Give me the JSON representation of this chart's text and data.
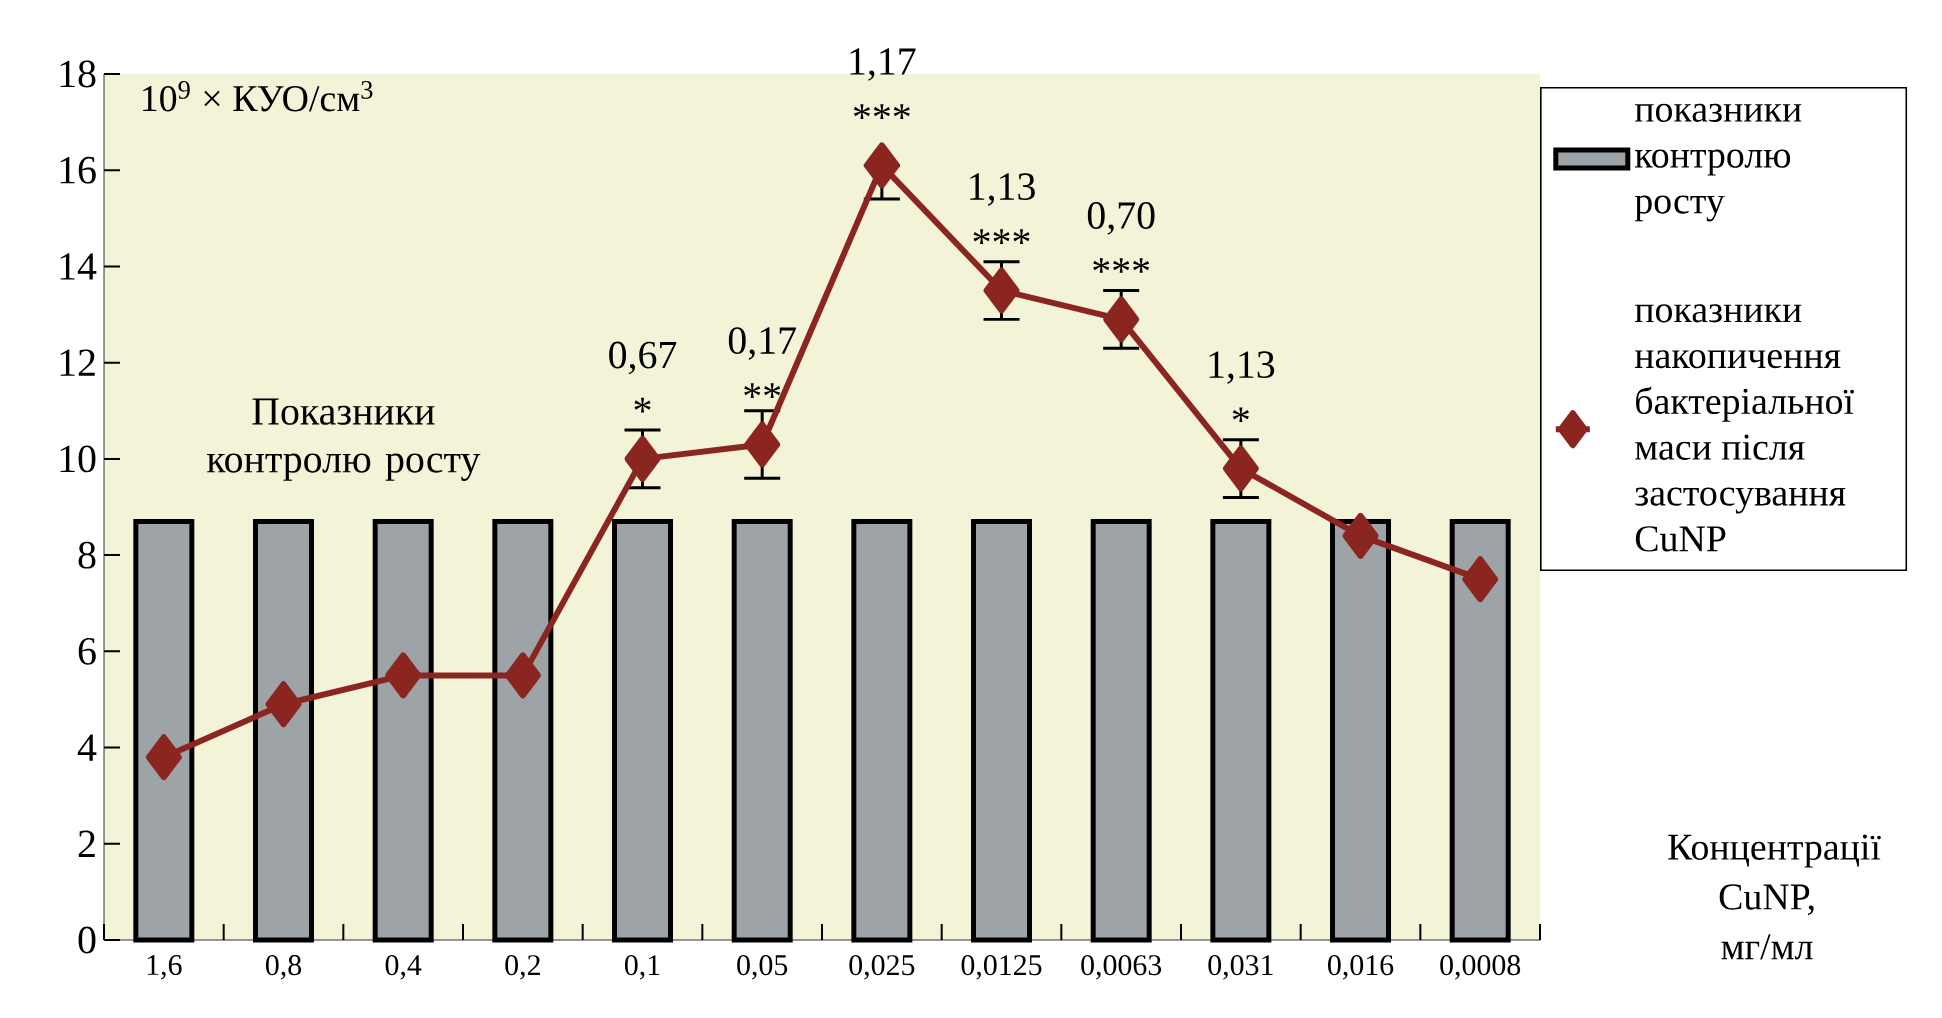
{
  "chart_data": {
    "type": "bar",
    "ylabel": "10$^{9}$ × КУО/см$^{3}$",
    "xlabel": "Концентрації CuNP, мг/мл",
    "categories": [
      "1,6",
      "0,8",
      "0,4",
      "0,2",
      "0,1",
      "0,05",
      "0,025",
      "0,0125",
      "0,0063",
      "0,031",
      "0,016",
      "0,0008"
    ],
    "series": [
      {
        "name": "показники контролю росту",
        "color": "#9ea3a8",
        "values": [
          8.7,
          8.7,
          8.7,
          8.7,
          8.7,
          8.7,
          8.7,
          8.7,
          8.7,
          8.7,
          8.7,
          8.7
        ]
      },
      {
        "name": "показники накопичення бактеріальної маси після застосування CuNP",
        "type": "line",
        "color": "#8b2520",
        "marker": "diamond",
        "values": [
          3.8,
          4.9,
          5.5,
          5.5,
          10.0,
          10.3,
          16.1,
          13.5,
          12.9,
          9.8,
          8.4,
          7.5
        ],
        "errors": [
          null,
          null,
          null,
          null,
          0.6,
          0.7,
          [
            15.4,
            16.1
          ],
          0.6,
          0.6,
          0.6,
          null,
          null
        ]
      }
    ],
    "ylim": [
      0,
      18
    ],
    "yticks": [
      0,
      2,
      4,
      6,
      8,
      10,
      12,
      14,
      16,
      18
    ],
    "legend": "right",
    "annotations": [
      "Показники контролю росту",
      "0,67 *",
      "0,17 **",
      "1,17 ***",
      "1,13 ***",
      "0,70 ***",
      "1,13 *"
    ]
  }
}
